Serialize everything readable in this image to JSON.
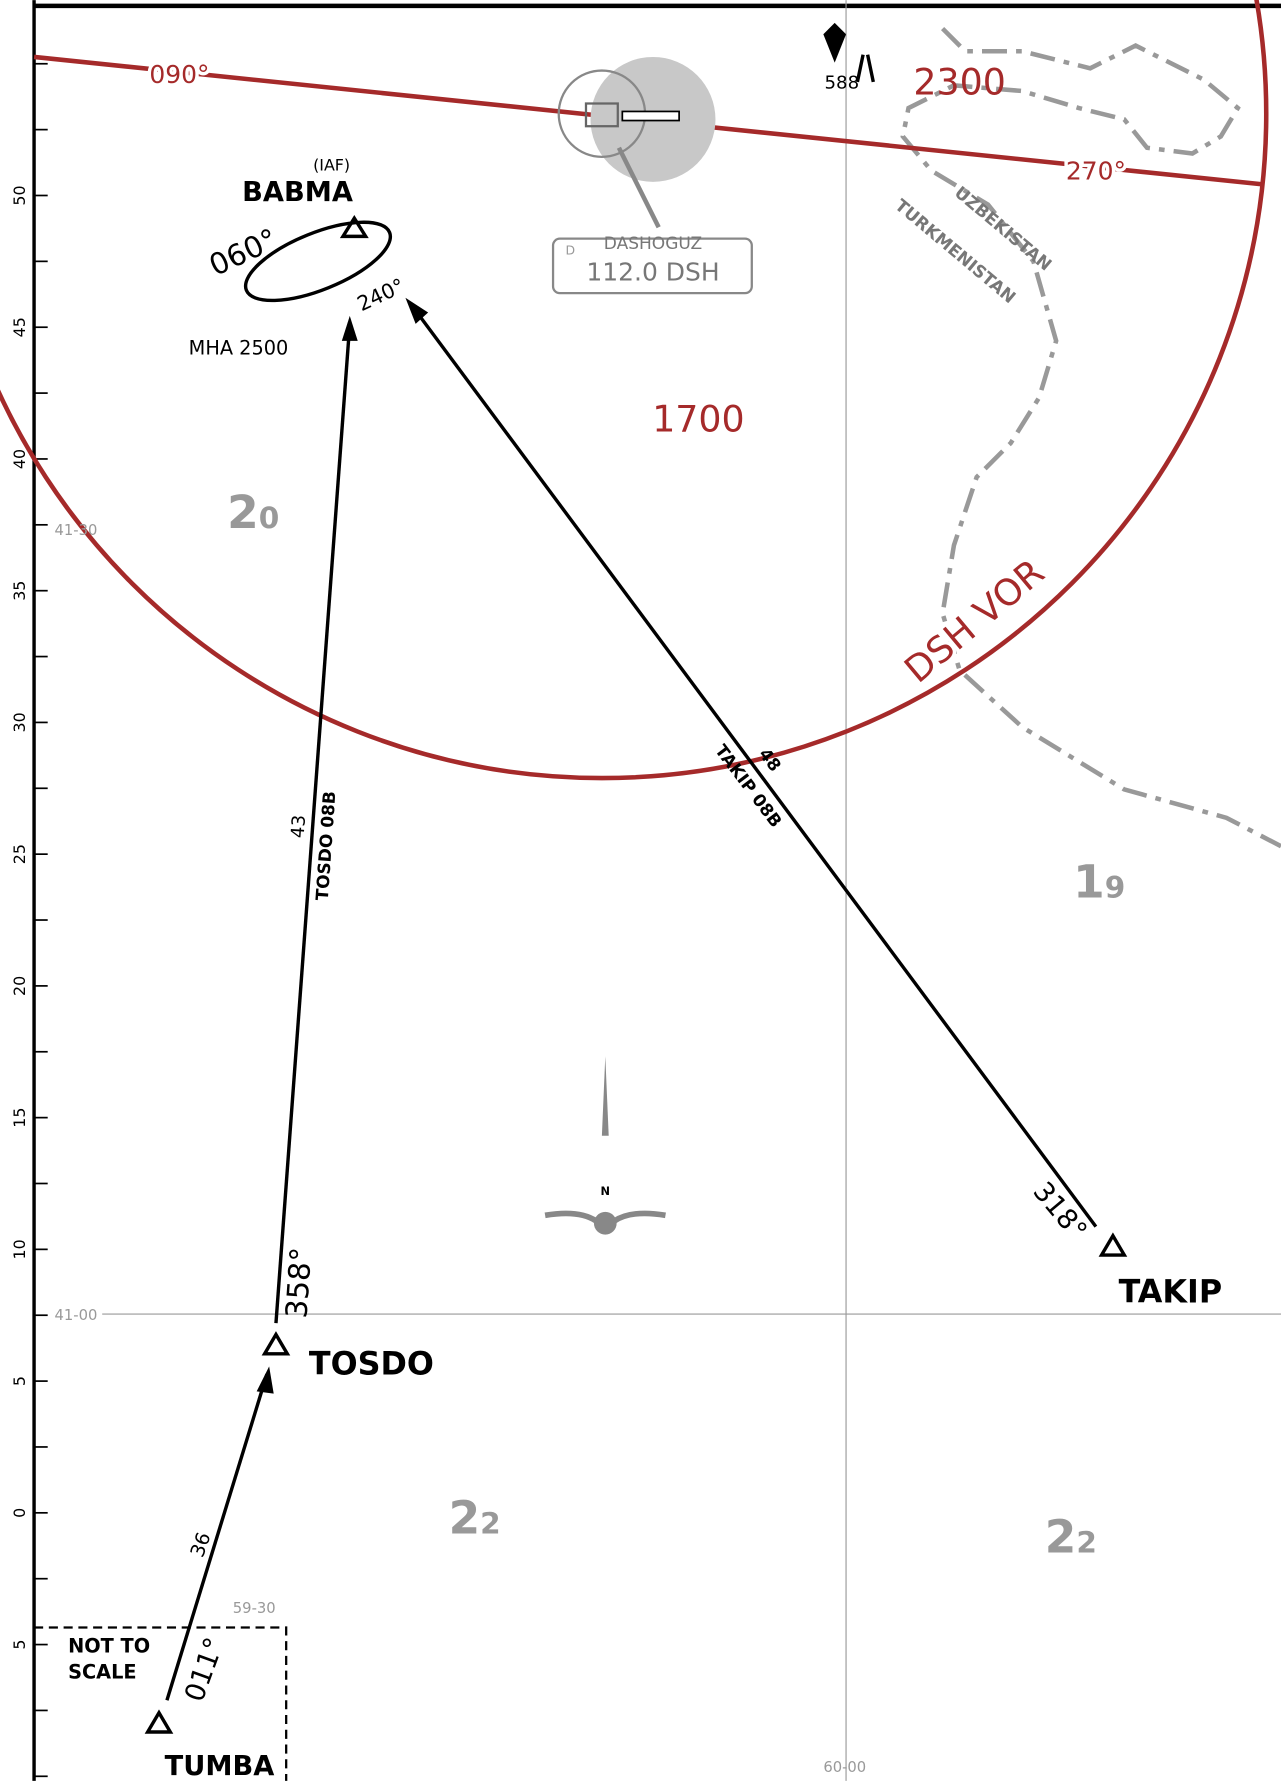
{
  "frequency_box": {
    "type": "D",
    "name": "DASHOGUZ",
    "frequency": "112.0 DSH"
  },
  "headings": {
    "east": "090°",
    "west": "270°",
    "hold_in": "060°",
    "hold_out": "240°",
    "tosdo": "358°",
    "takip": "318°",
    "tumba": "011°"
  },
  "obstacle": "588",
  "sectors": {
    "north": "2300",
    "south": "1700"
  },
  "fixes": {
    "babma": {
      "role": "(IAF)",
      "name": "BABMA",
      "mha": "MHA 2500"
    },
    "tosdo": "TOSDO",
    "takip": "TAKIP",
    "tumba": "TUMBA"
  },
  "countries": [
    "UZBEKISTAN",
    "TURKMENISTAN"
  ],
  "vor_circle": "DSH VOR",
  "routes": [
    {
      "name": "TAKIP 08B",
      "distance": "48"
    },
    {
      "name": "TOSDO 08B",
      "distance": "43"
    },
    {
      "distance": "36"
    }
  ],
  "grid_mora": [
    {
      "big": "2",
      "small": "0"
    },
    {
      "big": "1",
      "small": "9"
    },
    {
      "big": "2",
      "small": "2"
    },
    {
      "big": "2",
      "small": "2"
    }
  ],
  "coordinates": {
    "lat_4130": "41-30",
    "lat_4100": "41-00",
    "lon_5930": "59-30",
    "lon_6000": "60-00"
  },
  "north": "N",
  "not_to_scale": [
    "NOT TO",
    "SCALE"
  ],
  "scale_labels": [
    "50",
    "45",
    "40",
    "35",
    "30",
    "25",
    "20",
    "15",
    "10",
    "5",
    "0",
    "5"
  ]
}
